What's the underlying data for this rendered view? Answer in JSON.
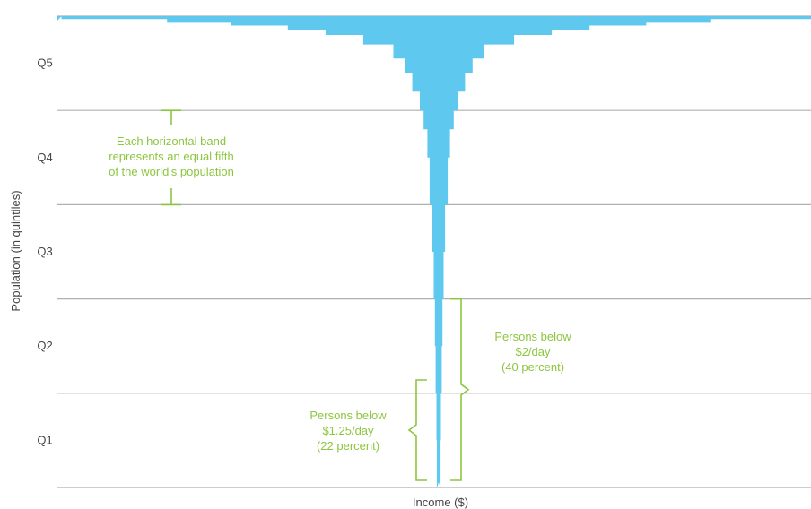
{
  "chart_data": {
    "type": "area",
    "title": "",
    "xlabel": "Income ($)",
    "ylabel": "Population (in quintiles)",
    "categories": [
      "Q1",
      "Q2",
      "Q3",
      "Q4",
      "Q5"
    ],
    "grid": true,
    "colors": {
      "fill": "#5ec8ef",
      "grid": "#b0b0b0",
      "annotation": "#8cc63f",
      "text": "#444444"
    },
    "series": [
      {
        "population_quintile_position": [
          0.0,
          0.5,
          1.0,
          1.5,
          2.0,
          2.5,
          3.0,
          3.5,
          3.8,
          4.0,
          4.2,
          4.4,
          4.55,
          4.7,
          4.8,
          4.85,
          4.9,
          4.93,
          4.97,
          5.0
        ],
        "income_relative": [
          0.004,
          0.005,
          0.006,
          0.008,
          0.01,
          0.013,
          0.017,
          0.024,
          0.03,
          0.04,
          0.05,
          0.07,
          0.09,
          0.12,
          0.2,
          0.3,
          0.4,
          0.55,
          0.72,
          1.0
        ]
      }
    ],
    "annotations": [
      {
        "lines": [
          "Each horizontal band",
          "represents an equal fifth",
          "of the world's population"
        ]
      },
      {
        "lines": [
          "Persons below",
          "$2/day",
          "(40 percent)"
        ]
      },
      {
        "lines": [
          "Persons below",
          "$1.25/day",
          "(22 percent)"
        ]
      }
    ]
  }
}
